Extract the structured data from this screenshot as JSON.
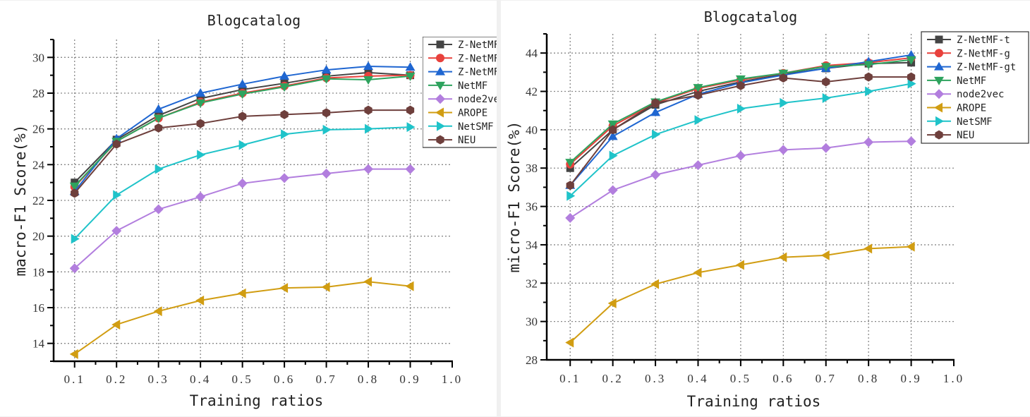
{
  "chart_data": [
    {
      "type": "line",
      "title": "Blogcatalog",
      "xlabel": "Training ratios",
      "ylabel": "macro-F1 Score(%)",
      "x": [
        0.1,
        0.2,
        0.3,
        0.4,
        0.5,
        0.6,
        0.7,
        0.8,
        0.9
      ],
      "xticks": [
        "0.1",
        "0.2",
        "0.3",
        "0.4",
        "0.5",
        "0.6",
        "0.7",
        "0.8",
        "0.9",
        "1.0"
      ],
      "xlim": [
        0.05,
        1.0
      ],
      "yticks": [
        "14",
        "16",
        "18",
        "20",
        "22",
        "24",
        "26",
        "28",
        "30"
      ],
      "ylim": [
        13,
        31
      ],
      "grid": true,
      "legend_position": "top-right",
      "series": [
        {
          "name": "Z-NetMF",
          "color": "#444444",
          "marker": "square",
          "values": [
            23.0,
            25.4,
            26.75,
            27.7,
            28.2,
            28.55,
            28.95,
            29.15,
            29.0
          ]
        },
        {
          "name": "Z-NetMF",
          "color": "#e8413c",
          "marker": "circle",
          "values": [
            22.75,
            25.3,
            26.6,
            27.5,
            28.0,
            28.4,
            28.85,
            28.95,
            29.0
          ]
        },
        {
          "name": "Z-NetMF",
          "color": "#1f66d1",
          "marker": "triangle-up",
          "values": [
            22.5,
            25.45,
            27.1,
            28.0,
            28.5,
            28.95,
            29.3,
            29.5,
            29.45
          ]
        },
        {
          "name": "NetMF",
          "color": "#2ea35e",
          "marker": "triangle-down",
          "values": [
            22.8,
            25.3,
            26.6,
            27.45,
            27.95,
            28.35,
            28.8,
            28.75,
            28.95
          ]
        },
        {
          "name": "node2vec",
          "color": "#b27ede",
          "marker": "diamond",
          "values": [
            18.2,
            20.3,
            21.5,
            22.2,
            22.95,
            23.25,
            23.5,
            23.75,
            23.75
          ]
        },
        {
          "name": "AROPE",
          "color": "#d19d12",
          "marker": "triangle-left",
          "values": [
            13.4,
            15.05,
            15.8,
            16.4,
            16.8,
            17.1,
            17.15,
            17.45,
            17.2
          ]
        },
        {
          "name": "NetSMF",
          "color": "#1fc3c9",
          "marker": "triangle-right",
          "values": [
            19.85,
            22.3,
            23.75,
            24.55,
            25.1,
            25.7,
            25.95,
            26.0,
            26.1
          ]
        },
        {
          "name": "NEU",
          "color": "#6e3f3c",
          "marker": "hexagon",
          "values": [
            22.4,
            25.15,
            26.05,
            26.3,
            26.7,
            26.8,
            26.9,
            27.05,
            27.05
          ]
        }
      ],
      "legend_labels": [
        "Z-NetMF",
        "Z-NetMF",
        "Z-NetMF",
        "NetMF",
        "node2vec",
        "AROPE",
        "NetSMF",
        "NEU"
      ]
    },
    {
      "type": "line",
      "title": "Blogcatalog",
      "xlabel": "Training ratios",
      "ylabel": "micro-F1 Score(%)",
      "x": [
        0.1,
        0.2,
        0.3,
        0.4,
        0.5,
        0.6,
        0.7,
        0.8,
        0.9
      ],
      "xticks": [
        "0.1",
        "0.2",
        "0.3",
        "0.4",
        "0.5",
        "0.6",
        "0.7",
        "0.8",
        "0.9",
        "1.0"
      ],
      "xlim": [
        0.045,
        1.0
      ],
      "yticks": [
        "28",
        "30",
        "32",
        "34",
        "36",
        "38",
        "40",
        "42",
        "44"
      ],
      "ylim": [
        28,
        45
      ],
      "grid": true,
      "legend_position": "top-right",
      "series": [
        {
          "name": "Z-NetMF-t",
          "color": "#444444",
          "marker": "square",
          "values": [
            38.0,
            40.0,
            41.3,
            42.0,
            42.5,
            42.9,
            43.2,
            43.45,
            43.5
          ]
        },
        {
          "name": "Z-NetMF-g",
          "color": "#e8413c",
          "marker": "circle",
          "values": [
            38.2,
            40.2,
            41.4,
            42.15,
            42.6,
            42.95,
            43.35,
            43.5,
            43.75
          ]
        },
        {
          "name": "Z-NetMF-gt",
          "color": "#1f66d1",
          "marker": "triangle-up",
          "values": [
            37.1,
            39.65,
            40.9,
            41.85,
            42.45,
            42.85,
            43.2,
            43.55,
            43.9
          ]
        },
        {
          "name": "NetMF",
          "color": "#2ea35e",
          "marker": "triangle-down",
          "values": [
            38.3,
            40.3,
            41.45,
            42.2,
            42.65,
            42.95,
            43.3,
            43.4,
            43.65
          ]
        },
        {
          "name": "node2vec",
          "color": "#b27ede",
          "marker": "diamond",
          "values": [
            35.4,
            36.85,
            37.65,
            38.15,
            38.65,
            38.95,
            39.05,
            39.35,
            39.4
          ]
        },
        {
          "name": "AROPE",
          "color": "#d19d12",
          "marker": "triangle-left",
          "values": [
            28.9,
            30.95,
            31.95,
            32.55,
            32.95,
            33.35,
            33.45,
            33.8,
            33.9
          ]
        },
        {
          "name": "NetSMF",
          "color": "#1fc3c9",
          "marker": "triangle-right",
          "values": [
            36.55,
            38.65,
            39.75,
            40.5,
            41.1,
            41.4,
            41.65,
            42.0,
            42.4
          ]
        },
        {
          "name": "NEU",
          "color": "#6e3f3c",
          "marker": "hexagon",
          "values": [
            37.1,
            40.0,
            41.4,
            41.8,
            42.3,
            42.7,
            42.5,
            42.75,
            42.75
          ]
        }
      ],
      "legend_labels": [
        "Z-NetMF-t",
        "Z-NetMF-g",
        "Z-NetMF-gt",
        "NetMF",
        "node2vec",
        "AROPE",
        "NetSMF",
        "NEU"
      ]
    }
  ]
}
